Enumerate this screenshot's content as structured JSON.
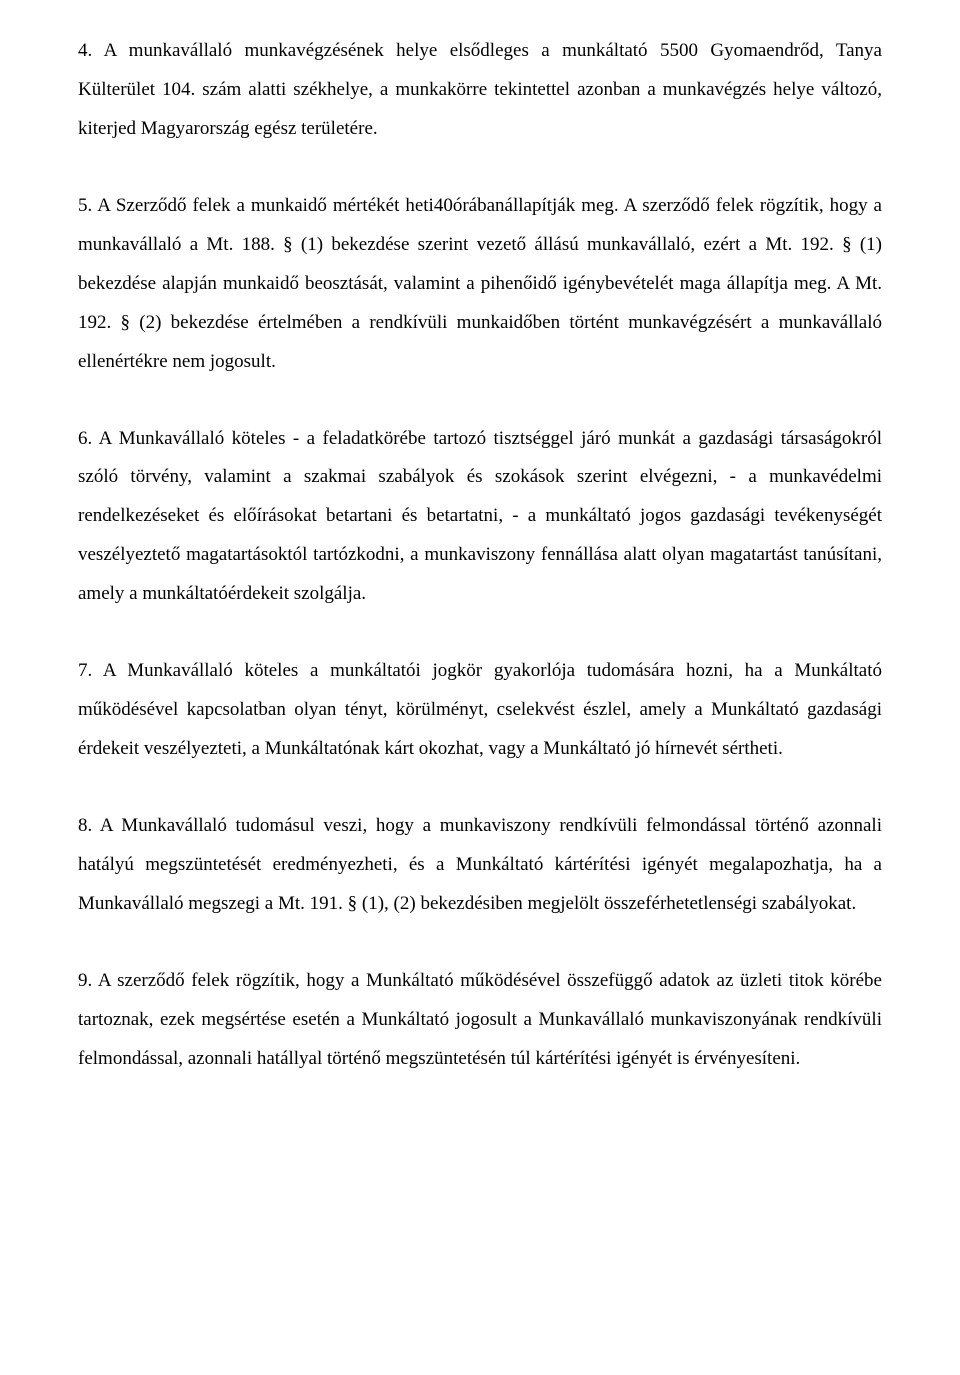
{
  "document": {
    "font_family": "Times New Roman",
    "font_size_pt": 14,
    "text_color": "#000000",
    "background_color": "#ffffff",
    "line_height": 2.05,
    "text_align": "justify",
    "paragraphs": [
      {
        "id": "p4",
        "text": "4. A munkavállaló munkavégzésének helye elsődleges a munkáltató 5500 Gyomaendrőd, Tanya Külterület 104. szám alatti székhelye, a munkakörre tekintettel azonban a munkavégzés helye változó, kiterjed Magyarország egész területére."
      },
      {
        "id": "p5",
        "text": "5. A Szerződő felek a munkaidő mértékét heti40órábanállapítják meg. A szerződő felek rögzítik, hogy a munkavállaló a Mt. 188. § (1) bekezdése szerint vezető állású munkavállaló, ezért a Mt. 192. § (1) bekezdése alapján munkaidő beosztását, valamint a pihenőidő igénybevételét maga állapítja meg. A Mt. 192. § (2) bekezdése értelmében a rendkívüli munkaidőben történt munkavégzésért a munkavállaló ellenértékre nem jogosult."
      },
      {
        "id": "p6",
        "text": "6. A Munkavállaló köteles\n- a feladatkörébe tartozó tisztséggel járó munkát a gazdasági társaságokról szóló törvény, valamint a szakmai szabályok és szokások szerint elvégezni,\n- a munkavédelmi rendelkezéseket és előírásokat betartani és betartatni,\n- a munkáltató jogos gazdasági tevékenységét veszélyeztető magatartásoktól tartózkodni, a munkaviszony fennállása alatt olyan magatartást tanúsítani, amely a munkáltatóérdekeit szolgálja."
      },
      {
        "id": "p7",
        "text": "7. A Munkavállaló köteles a munkáltatói jogkör gyakorlója tudomására hozni, ha a Munkáltató működésével kapcsolatban olyan tényt, körülményt, cselekvést észlel, amely a Munkáltató gazdasági érdekeit veszélyezteti, a Munkáltatónak kárt okozhat, vagy a Munkáltató jó hírnevét sértheti."
      },
      {
        "id": "p8",
        "text": "8. A Munkavállaló tudomásul veszi, hogy a munkaviszony rendkívüli felmondással történő azonnali hatályú megszüntetését eredményezheti, és a Munkáltató kártérítési igényét megalapozhatja, ha a Munkavállaló megszegi a Mt. 191. § (1), (2) bekezdésiben megjelölt összeférhetetlenségi szabályokat."
      },
      {
        "id": "p9",
        "text": "9. A szerződő felek rögzítik, hogy a Munkáltató működésével összefüggő adatok az üzleti titok körébe tartoznak, ezek megsértése esetén a Munkáltató jogosult a Munkavállaló munkaviszonyának rendkívüli felmondással, azonnali hatállyal történő megszüntetésén túl kártérítési igényét is érvényesíteni."
      }
    ]
  }
}
